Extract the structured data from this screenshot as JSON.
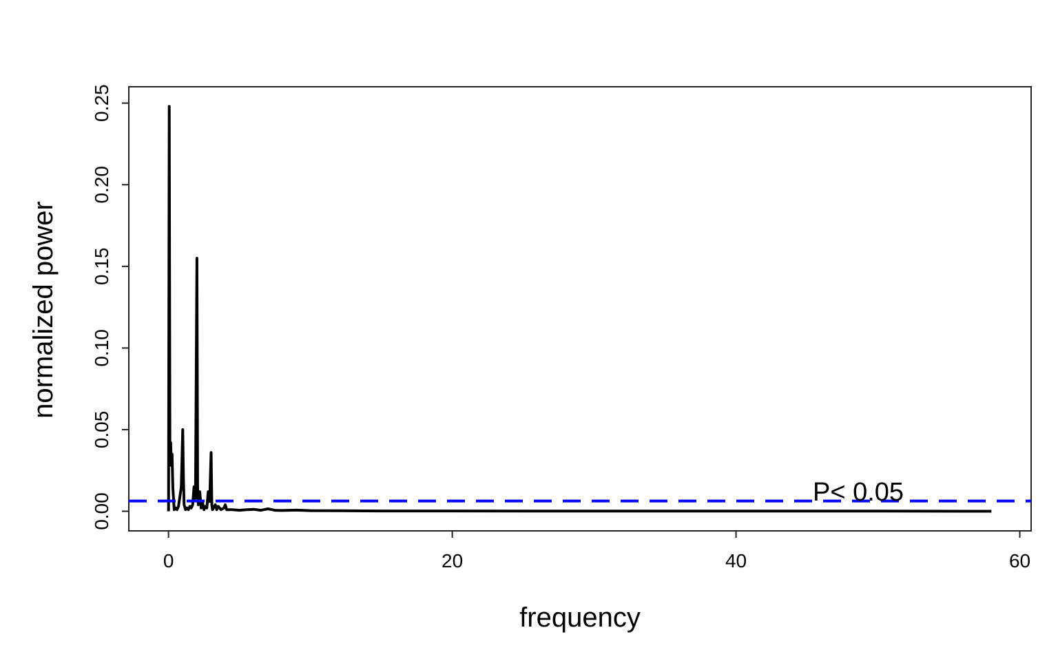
{
  "chart_data": {
    "type": "line",
    "title": "",
    "xlabel": "frequency",
    "ylabel": "normalized power",
    "xlim": [
      -2.8,
      60.8
    ],
    "ylim": [
      -0.012,
      0.26
    ],
    "xticks": [
      0,
      20,
      40,
      60
    ],
    "xtick_labels": [
      "0",
      "20",
      "40",
      "60"
    ],
    "yticks": [
      0,
      0.05,
      0.1,
      0.15,
      0.2,
      0.25
    ],
    "ytick_labels": [
      "0.00",
      "0.05",
      "0.10",
      "0.15",
      "0.20",
      "0.25"
    ],
    "grid": false,
    "series": [
      {
        "color": "#000000",
        "points": [
          [
            0.0,
            0.0
          ],
          [
            0.05,
            0.248
          ],
          [
            0.1,
            0.03
          ],
          [
            0.15,
            0.042
          ],
          [
            0.2,
            0.028
          ],
          [
            0.25,
            0.035
          ],
          [
            0.3,
            0.015
          ],
          [
            0.35,
            0.008
          ],
          [
            0.4,
            0.001
          ],
          [
            0.5,
            0.002
          ],
          [
            0.6,
            0.001
          ],
          [
            0.7,
            0.003
          ],
          [
            0.8,
            0.009
          ],
          [
            0.9,
            0.015
          ],
          [
            1.0,
            0.05
          ],
          [
            1.05,
            0.02
          ],
          [
            1.1,
            0.004
          ],
          [
            1.2,
            0.001
          ],
          [
            1.3,
            0.002
          ],
          [
            1.4,
            0.001
          ],
          [
            1.5,
            0.003
          ],
          [
            1.6,
            0.002
          ],
          [
            1.7,
            0.004
          ],
          [
            1.8,
            0.015
          ],
          [
            1.9,
            0.008
          ],
          [
            2.0,
            0.155
          ],
          [
            2.05,
            0.015
          ],
          [
            2.1,
            0.004
          ],
          [
            2.2,
            0.012
          ],
          [
            2.3,
            0.002
          ],
          [
            2.4,
            0.005
          ],
          [
            2.5,
            0.001
          ],
          [
            2.6,
            0.003
          ],
          [
            2.7,
            0.002
          ],
          [
            2.8,
            0.012
          ],
          [
            2.9,
            0.006
          ],
          [
            3.0,
            0.036
          ],
          [
            3.05,
            0.004
          ],
          [
            3.1,
            0.001
          ],
          [
            3.3,
            0.004
          ],
          [
            3.4,
            0.001
          ],
          [
            3.5,
            0.003
          ],
          [
            3.7,
            0.001
          ],
          [
            3.9,
            0.002
          ],
          [
            4.0,
            0.004
          ],
          [
            4.1,
            0.001
          ],
          [
            4.5,
            0.001
          ],
          [
            5.0,
            0.0006
          ],
          [
            5.5,
            0.001
          ],
          [
            6.0,
            0.0012
          ],
          [
            6.5,
            0.0006
          ],
          [
            7.0,
            0.0015
          ],
          [
            7.5,
            0.0006
          ],
          [
            8.0,
            0.0005
          ],
          [
            9.0,
            0.0007
          ],
          [
            10.0,
            0.0004
          ],
          [
            12.0,
            0.0003
          ],
          [
            15.0,
            0.0002
          ],
          [
            20.0,
            0.0002
          ],
          [
            30.0,
            0.0001
          ],
          [
            40.0,
            0.0001
          ],
          [
            50.0,
            0.0001
          ],
          [
            58.0,
            0.0
          ]
        ]
      }
    ],
    "threshold": {
      "y": 0.0063,
      "color": "#0000ff",
      "style": "dashed",
      "label": "P< 0.05"
    }
  }
}
